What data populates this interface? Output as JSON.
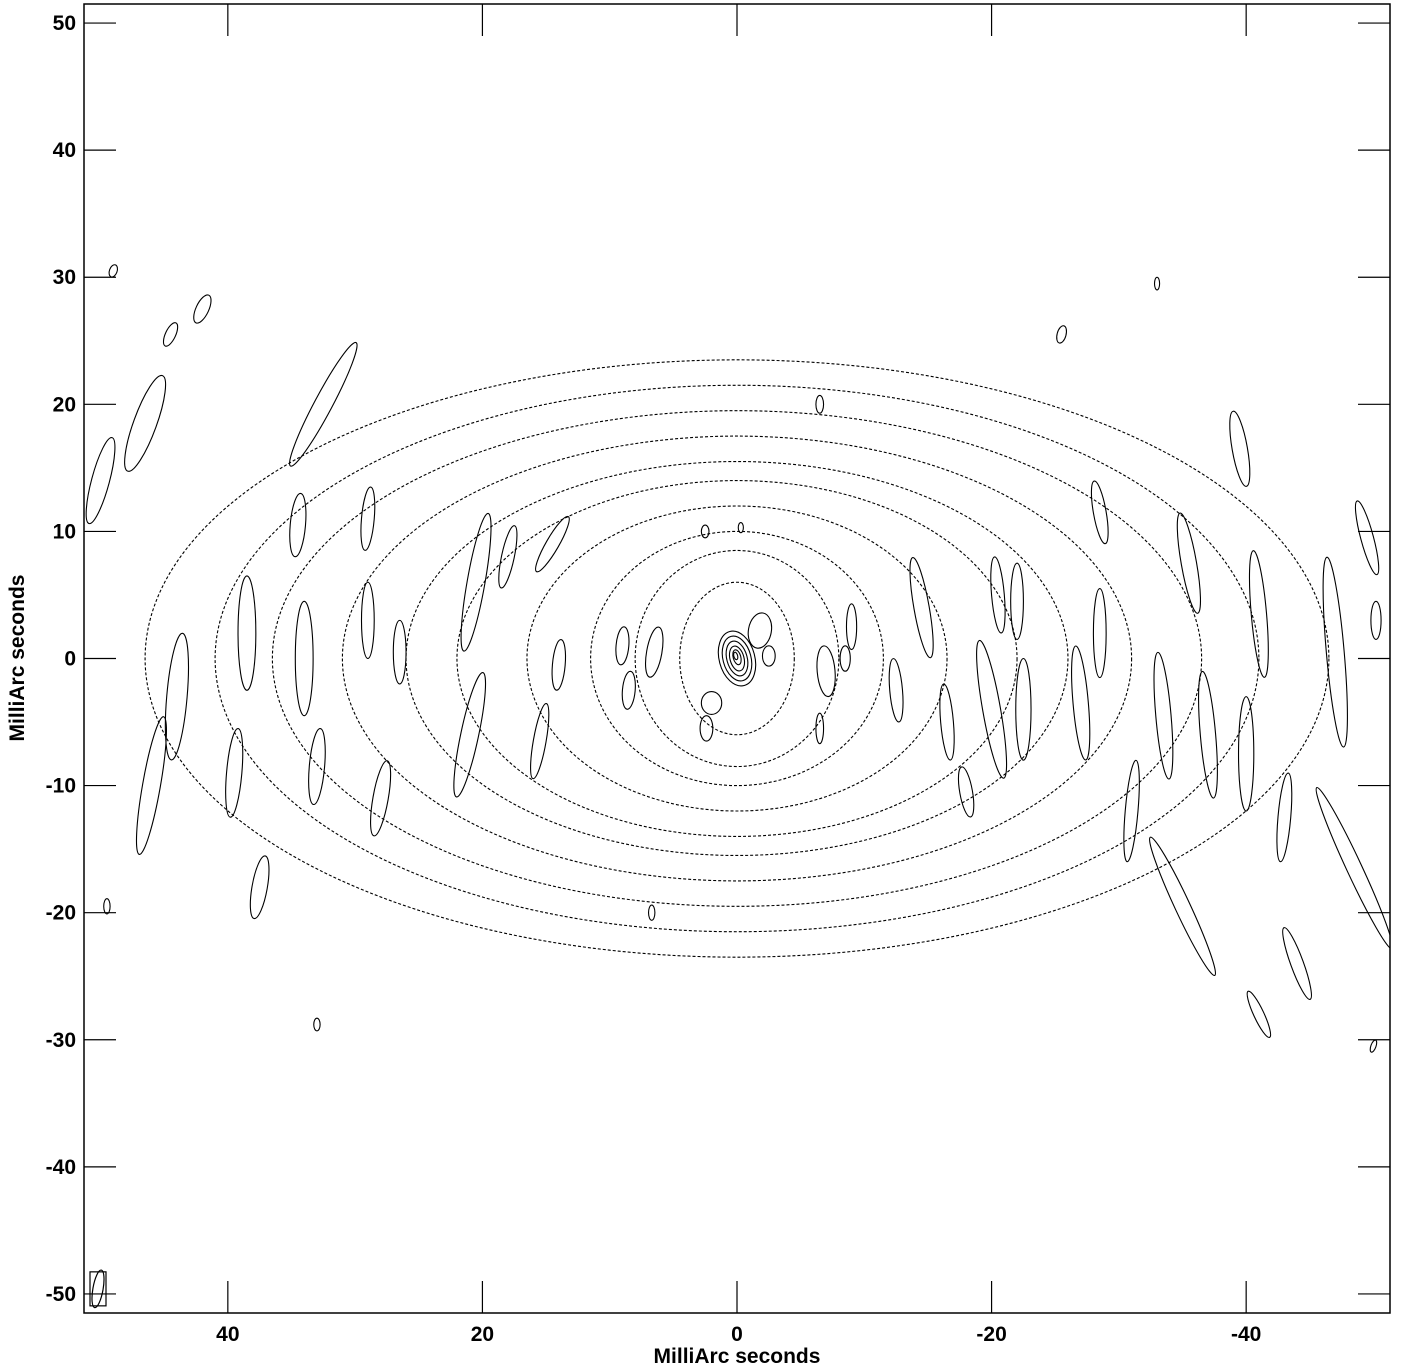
{
  "chart_data": {
    "type": "contour",
    "title": "",
    "xlabel": "MilliArc seconds",
    "ylabel": "MilliArc seconds",
    "xlim": [
      51.3,
      -51.3
    ],
    "ylim": [
      -51.5,
      51.5
    ],
    "x_ticks": [
      40,
      20,
      0,
      -20,
      -40
    ],
    "y_ticks": [
      50,
      40,
      30,
      20,
      10,
      0,
      -10,
      -20,
      -30,
      -40,
      -50
    ],
    "x_tick_labels": [
      "40",
      "20",
      "0",
      "-20",
      "-40"
    ],
    "y_tick_labels": [
      "50",
      "40",
      "30",
      "20",
      "10",
      "0",
      "-10",
      "-20",
      "-30",
      "-40",
      "-50"
    ],
    "grid": false,
    "beam": {
      "x": 50.2,
      "y": -49.6,
      "major": 3.0,
      "minor": 0.8,
      "angle": 10
    },
    "source": {
      "x": 0,
      "y": 0,
      "levels": [
        {
          "x": 0,
          "y": 0,
          "rx": 1.4,
          "ry": 2.2,
          "angle": -15
        },
        {
          "x": 0,
          "y": 0,
          "rx": 1.1,
          "ry": 1.8,
          "angle": -15
        },
        {
          "x": 0,
          "y": 0,
          "rx": 0.8,
          "ry": 1.4,
          "angle": -15
        },
        {
          "x": 0,
          "y": 0,
          "rx": 0.55,
          "ry": 1.0,
          "angle": -15
        },
        {
          "x": 0,
          "y": 0.1,
          "rx": 0.3,
          "ry": 0.6,
          "angle": -15
        },
        {
          "x": 0.1,
          "y": 0.2,
          "rx": 0.15,
          "ry": 0.3,
          "angle": -15
        }
      ]
    },
    "sidelobe_features": [
      {
        "x": 46.5,
        "y": 18.5,
        "rx": 0.9,
        "ry": 4.0,
        "angle": 20
      },
      {
        "x": 44.0,
        "y": -3.0,
        "rx": 0.8,
        "ry": 5.0,
        "angle": 5
      },
      {
        "x": 46.0,
        "y": -10.0,
        "rx": 0.7,
        "ry": 5.5,
        "angle": 10
      },
      {
        "x": 50.0,
        "y": 14.0,
        "rx": 0.7,
        "ry": 3.5,
        "angle": 15
      },
      {
        "x": 38.5,
        "y": 2.0,
        "rx": 0.7,
        "ry": 4.5,
        "angle": 0
      },
      {
        "x": 39.5,
        "y": -9.0,
        "rx": 0.6,
        "ry": 3.5,
        "angle": 5
      },
      {
        "x": 37.5,
        "y": -18.0,
        "rx": 0.6,
        "ry": 2.5,
        "angle": 10
      },
      {
        "x": 34.5,
        "y": 10.5,
        "rx": 0.6,
        "ry": 2.5,
        "angle": 5
      },
      {
        "x": 34.0,
        "y": 0.0,
        "rx": 0.7,
        "ry": 4.5,
        "angle": 0
      },
      {
        "x": 32.5,
        "y": 20.0,
        "rx": 0.7,
        "ry": 5.5,
        "angle": 28
      },
      {
        "x": 33.0,
        "y": -8.5,
        "rx": 0.6,
        "ry": 3.0,
        "angle": 5
      },
      {
        "x": 29.0,
        "y": 3.0,
        "rx": 0.5,
        "ry": 3.0,
        "angle": 0
      },
      {
        "x": 29.0,
        "y": 11.0,
        "rx": 0.5,
        "ry": 2.5,
        "angle": 5
      },
      {
        "x": 28.0,
        "y": -11.0,
        "rx": 0.6,
        "ry": 3.0,
        "angle": 10
      },
      {
        "x": 42.0,
        "y": 27.5,
        "rx": 0.5,
        "ry": 1.2,
        "angle": 25
      },
      {
        "x": 44.5,
        "y": 25.5,
        "rx": 0.4,
        "ry": 1.0,
        "angle": 25
      },
      {
        "x": 49.0,
        "y": 30.5,
        "rx": 0.3,
        "ry": 0.5,
        "angle": 20
      },
      {
        "x": 20.5,
        "y": 6.0,
        "rx": 0.7,
        "ry": 5.5,
        "angle": 10
      },
      {
        "x": 21.0,
        "y": -6.0,
        "rx": 0.7,
        "ry": 5.0,
        "angle": 12
      },
      {
        "x": 18.0,
        "y": 8.0,
        "rx": 0.5,
        "ry": 2.5,
        "angle": 12
      },
      {
        "x": 14.5,
        "y": 9.0,
        "rx": 0.5,
        "ry": 2.5,
        "angle": 30
      },
      {
        "x": 15.5,
        "y": -6.5,
        "rx": 0.5,
        "ry": 3.0,
        "angle": 10
      },
      {
        "x": 14.0,
        "y": -0.5,
        "rx": 0.5,
        "ry": 2.0,
        "angle": 5
      },
      {
        "x": 26.5,
        "y": 0.5,
        "rx": 0.5,
        "ry": 2.5,
        "angle": 0
      },
      {
        "x": 9.0,
        "y": 1.0,
        "rx": 0.5,
        "ry": 1.5,
        "angle": 5
      },
      {
        "x": 8.5,
        "y": -2.5,
        "rx": 0.5,
        "ry": 1.5,
        "angle": 5
      },
      {
        "x": 6.5,
        "y": 0.5,
        "rx": 0.6,
        "ry": 2.0,
        "angle": 10
      },
      {
        "x": 2.0,
        "y": -3.5,
        "rx": 0.8,
        "ry": 0.9,
        "angle": 0
      },
      {
        "x": 2.4,
        "y": -5.5,
        "rx": 0.5,
        "ry": 1.0,
        "angle": 0
      },
      {
        "x": -1.8,
        "y": 2.2,
        "rx": 0.9,
        "ry": 1.4,
        "angle": 10
      },
      {
        "x": -2.5,
        "y": 0.2,
        "rx": 0.5,
        "ry": 0.8,
        "angle": 0
      },
      {
        "x": 2.5,
        "y": 10.0,
        "rx": 0.3,
        "ry": 0.5,
        "angle": 0
      },
      {
        "x": -0.3,
        "y": 10.3,
        "rx": 0.2,
        "ry": 0.4,
        "angle": 0
      },
      {
        "x": -7.0,
        "y": -1.0,
        "rx": 0.7,
        "ry": 2.0,
        "angle": -5
      },
      {
        "x": -8.5,
        "y": 0.0,
        "rx": 0.4,
        "ry": 1.0,
        "angle": 0
      },
      {
        "x": -6.5,
        "y": -5.5,
        "rx": 0.3,
        "ry": 1.2,
        "angle": 0
      },
      {
        "x": -9.0,
        "y": 2.5,
        "rx": 0.4,
        "ry": 1.8,
        "angle": 0
      },
      {
        "x": -12.5,
        "y": -2.5,
        "rx": 0.5,
        "ry": 2.5,
        "angle": -5
      },
      {
        "x": -14.5,
        "y": 4.0,
        "rx": 0.6,
        "ry": 4.0,
        "angle": -10
      },
      {
        "x": -16.5,
        "y": -5.0,
        "rx": 0.5,
        "ry": 3.0,
        "angle": -5
      },
      {
        "x": -18.0,
        "y": -10.5,
        "rx": 0.5,
        "ry": 2.0,
        "angle": -10
      },
      {
        "x": -20.0,
        "y": -4.0,
        "rx": 0.7,
        "ry": 5.5,
        "angle": -10
      },
      {
        "x": -20.5,
        "y": 5.0,
        "rx": 0.5,
        "ry": 3.0,
        "angle": -5
      },
      {
        "x": -22.5,
        "y": -4.0,
        "rx": 0.6,
        "ry": 4.0,
        "angle": 0
      },
      {
        "x": -22.0,
        "y": 4.5,
        "rx": 0.5,
        "ry": 3.0,
        "angle": 0
      },
      {
        "x": -28.5,
        "y": 2.0,
        "rx": 0.5,
        "ry": 3.5,
        "angle": 0
      },
      {
        "x": -27.0,
        "y": -3.5,
        "rx": 0.6,
        "ry": 4.5,
        "angle": -5
      },
      {
        "x": -28.5,
        "y": 11.5,
        "rx": 0.5,
        "ry": 2.5,
        "angle": -10
      },
      {
        "x": -31.0,
        "y": -12.0,
        "rx": 0.5,
        "ry": 4.0,
        "angle": 5
      },
      {
        "x": -33.5,
        "y": -4.5,
        "rx": 0.6,
        "ry": 5.0,
        "angle": -5
      },
      {
        "x": -35.5,
        "y": 7.5,
        "rx": 0.6,
        "ry": 4.0,
        "angle": -10
      },
      {
        "x": -35.0,
        "y": -19.5,
        "rx": 0.6,
        "ry": 6.0,
        "angle": -25
      },
      {
        "x": -37.0,
        "y": -6.0,
        "rx": 0.6,
        "ry": 5.0,
        "angle": -5
      },
      {
        "x": -41.0,
        "y": 3.5,
        "rx": 0.6,
        "ry": 5.0,
        "angle": -5
      },
      {
        "x": -40.0,
        "y": -7.5,
        "rx": 0.6,
        "ry": 4.5,
        "angle": 0
      },
      {
        "x": -39.5,
        "y": 16.5,
        "rx": 0.6,
        "ry": 3.0,
        "angle": -10
      },
      {
        "x": -43.0,
        "y": -12.5,
        "rx": 0.5,
        "ry": 3.5,
        "angle": 5
      },
      {
        "x": -47.0,
        "y": 0.5,
        "rx": 0.7,
        "ry": 7.5,
        "angle": -5
      },
      {
        "x": -48.5,
        "y": -16.5,
        "rx": 0.6,
        "ry": 7.0,
        "angle": -25
      },
      {
        "x": -44.0,
        "y": -24.0,
        "rx": 0.5,
        "ry": 3.0,
        "angle": -20
      },
      {
        "x": -41.0,
        "y": -28.0,
        "rx": 0.4,
        "ry": 2.0,
        "angle": -25
      },
      {
        "x": -49.5,
        "y": 9.5,
        "rx": 0.5,
        "ry": 3.0,
        "angle": -15
      },
      {
        "x": -50.2,
        "y": 3.0,
        "rx": 0.4,
        "ry": 1.5,
        "angle": 0
      },
      {
        "x": -25.5,
        "y": 25.5,
        "rx": 0.35,
        "ry": 0.7,
        "angle": 15
      },
      {
        "x": -33.0,
        "y": 29.5,
        "rx": 0.2,
        "ry": 0.5,
        "angle": 0
      },
      {
        "x": -6.5,
        "y": 20.0,
        "rx": 0.3,
        "ry": 0.7,
        "angle": 0
      },
      {
        "x": -50.0,
        "y": -30.5,
        "rx": 0.2,
        "ry": 0.5,
        "angle": 20
      },
      {
        "x": 6.7,
        "y": -20.0,
        "rx": 0.25,
        "ry": 0.6,
        "angle": 0
      },
      {
        "x": 33.0,
        "y": -28.8,
        "rx": 0.25,
        "ry": 0.5,
        "angle": 0
      },
      {
        "x": 49.5,
        "y": -19.5,
        "rx": 0.25,
        "ry": 0.6,
        "angle": 0
      }
    ],
    "dashed_arcs": [
      {
        "x": 0,
        "y": 0,
        "rx": 4.5,
        "ry": 6.0
      },
      {
        "x": 0,
        "y": 0,
        "rx": 8.0,
        "ry": 8.5
      },
      {
        "x": 0,
        "y": 0,
        "rx": 11.5,
        "ry": 10.0
      },
      {
        "x": 0,
        "y": 0,
        "rx": 16.5,
        "ry": 12.0
      },
      {
        "x": 0,
        "y": 0,
        "rx": 22.0,
        "ry": 14.0
      },
      {
        "x": 0,
        "y": 0,
        "rx": 26.0,
        "ry": 15.5
      },
      {
        "x": 0,
        "y": 0,
        "rx": 31.0,
        "ry": 17.5
      },
      {
        "x": 0,
        "y": 0,
        "rx": 36.5,
        "ry": 19.5
      },
      {
        "x": 0,
        "y": 0,
        "rx": 41.0,
        "ry": 21.5
      },
      {
        "x": 0,
        "y": 0,
        "rx": 46.5,
        "ry": 23.5
      }
    ]
  }
}
